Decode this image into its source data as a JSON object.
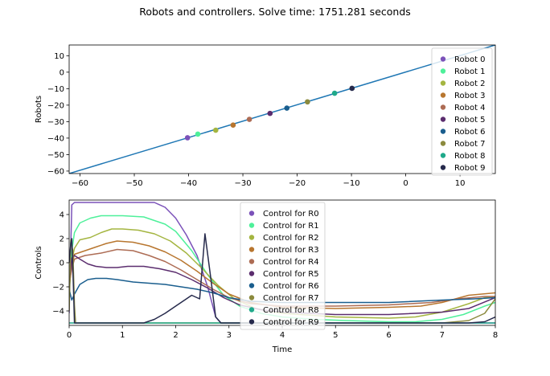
{
  "figure": {
    "suptitle": "Robots and controllers. Solve time: 1751.281 seconds"
  },
  "chart_data": [
    {
      "type": "scatter",
      "title": "",
      "xlabel": "",
      "ylabel": "Robots",
      "xlim": [
        -62,
        16.5
      ],
      "ylim": [
        -61.5,
        16.5
      ],
      "xticks": [
        -60,
        -50,
        -40,
        -30,
        -20,
        -10,
        0,
        10
      ],
      "yticks": [
        10,
        0,
        -10,
        -20,
        -30,
        -40,
        -50,
        -60
      ],
      "grid": false,
      "legend_position": "top-right",
      "line": {
        "x": [
          -62,
          16.5
        ],
        "y": [
          -61.5,
          16.5
        ],
        "color": "#1f77b4"
      },
      "series": [
        {
          "name": "Robot 0",
          "x": -40.2,
          "y": -39.8,
          "color": "#7b52b9"
        },
        {
          "name": "Robot 1",
          "x": -38.3,
          "y": -37.6,
          "color": "#4ef09a"
        },
        {
          "name": "Robot 2",
          "x": -35.0,
          "y": -35.2,
          "color": "#a4b540"
        },
        {
          "name": "Robot 3",
          "x": -31.8,
          "y": -32.1,
          "color": "#b8762f"
        },
        {
          "name": "Robot 4",
          "x": -28.8,
          "y": -28.6,
          "color": "#ad6c54"
        },
        {
          "name": "Robot 5",
          "x": -25.0,
          "y": -25.0,
          "color": "#5b2d6e"
        },
        {
          "name": "Robot 6",
          "x": -21.9,
          "y": -21.8,
          "color": "#1a5e8e"
        },
        {
          "name": "Robot 7",
          "x": -18.1,
          "y": -18.0,
          "color": "#8b8a3e"
        },
        {
          "name": "Robot 8",
          "x": -13.1,
          "y": -12.8,
          "color": "#1fa98a"
        },
        {
          "name": "Robot 9",
          "x": -9.9,
          "y": -9.8,
          "color": "#262a4c"
        }
      ]
    },
    {
      "type": "line",
      "title": "",
      "xlabel": "Time",
      "ylabel": "Controls",
      "xlim": [
        0,
        8
      ],
      "ylim": [
        -5.2,
        5.2
      ],
      "xticks": [
        0,
        1,
        2,
        3,
        4,
        5,
        6,
        7,
        8
      ],
      "yticks": [
        4,
        2,
        0,
        -2,
        -4
      ],
      "grid": false,
      "legend_position": "top-center",
      "series": [
        {
          "name": "Control for R0",
          "color": "#7b52b9",
          "x": [
            0,
            0.05,
            0.1,
            0.5,
            1.0,
            1.6,
            1.8,
            2.0,
            2.2,
            2.4,
            2.6,
            2.75,
            2.85,
            3.0,
            4.0,
            6.0,
            8.0
          ],
          "y": [
            -4.2,
            4.8,
            5.0,
            5.0,
            5.0,
            5.0,
            4.6,
            3.7,
            2.3,
            0.6,
            -2.0,
            -4.5,
            -5.0,
            -5.0,
            -5.0,
            -5.0,
            -5.0
          ]
        },
        {
          "name": "Control for R1",
          "color": "#4ef09a",
          "x": [
            0,
            0.05,
            0.1,
            0.2,
            0.4,
            0.6,
            1.0,
            1.4,
            1.8,
            2.0,
            2.3,
            2.6,
            2.9,
            3.2,
            3.6,
            4.0,
            4.6,
            5.2,
            6.0,
            6.5,
            7.0,
            7.4,
            7.8,
            8.0
          ],
          "y": [
            -2.6,
            1.0,
            2.5,
            3.3,
            3.7,
            3.9,
            3.9,
            3.8,
            3.2,
            2.6,
            1.0,
            -1.0,
            -2.7,
            -3.6,
            -4.2,
            -4.5,
            -4.7,
            -4.8,
            -4.9,
            -4.9,
            -4.7,
            -4.3,
            -3.6,
            -3.3
          ]
        },
        {
          "name": "Control for R2",
          "color": "#a4b540",
          "x": [
            0,
            0.05,
            0.1,
            0.2,
            0.4,
            0.6,
            0.8,
            1.0,
            1.3,
            1.6,
            1.9,
            2.2,
            2.5,
            2.8,
            3.1,
            3.5,
            4.0,
            5.0,
            6.0,
            6.5,
            7.0,
            7.5,
            7.8,
            8.0
          ],
          "y": [
            -2.3,
            0.2,
            1.2,
            1.9,
            2.1,
            2.5,
            2.8,
            2.8,
            2.7,
            2.4,
            1.8,
            0.8,
            -0.5,
            -1.9,
            -3.0,
            -3.8,
            -4.2,
            -4.5,
            -4.6,
            -4.5,
            -4.1,
            -3.4,
            -2.9,
            -2.8
          ]
        },
        {
          "name": "Control for R3",
          "color": "#b8762f",
          "x": [
            0,
            0.05,
            0.1,
            0.3,
            0.5,
            0.7,
            0.9,
            1.2,
            1.5,
            1.8,
            2.1,
            2.4,
            2.7,
            3.0,
            3.4,
            4.0,
            5.0,
            6.0,
            6.6,
            7.0,
            7.5,
            8.0
          ],
          "y": [
            -2.0,
            -0.2,
            0.7,
            1.0,
            1.3,
            1.6,
            1.8,
            1.7,
            1.4,
            0.9,
            0.2,
            -0.7,
            -1.7,
            -2.6,
            -3.3,
            -3.7,
            -3.8,
            -3.7,
            -3.6,
            -3.3,
            -2.7,
            -2.5
          ]
        },
        {
          "name": "Control for R4",
          "color": "#ad6c54",
          "x": [
            0,
            0.05,
            0.1,
            0.3,
            0.6,
            0.9,
            1.2,
            1.5,
            1.8,
            2.1,
            2.4,
            2.7,
            3.0,
            3.4,
            4.0,
            5.0,
            6.0,
            6.8,
            7.3,
            7.8,
            8.0
          ],
          "y": [
            -1.8,
            -0.5,
            0.3,
            0.6,
            0.8,
            1.1,
            1.0,
            0.6,
            0.1,
            -0.6,
            -1.4,
            -2.2,
            -2.9,
            -3.4,
            -3.6,
            -3.6,
            -3.5,
            -3.3,
            -3.0,
            -2.8,
            -2.8
          ]
        },
        {
          "name": "Control for R5",
          "color": "#5b2d6e",
          "x": [
            0,
            0.05,
            0.1,
            0.2,
            0.35,
            0.5,
            0.7,
            0.9,
            1.1,
            1.4,
            1.7,
            2.0,
            2.3,
            2.6,
            2.9,
            3.2,
            3.6,
            4.0,
            5.0,
            6.0,
            7.0,
            7.5,
            8.0
          ],
          "y": [
            -1.7,
            0.4,
            0.6,
            0.3,
            -0.1,
            -0.3,
            -0.4,
            -0.4,
            -0.3,
            -0.3,
            -0.5,
            -0.8,
            -1.4,
            -2.1,
            -2.9,
            -3.5,
            -3.9,
            -4.1,
            -4.3,
            -4.3,
            -4.1,
            -3.8,
            -2.9
          ]
        },
        {
          "name": "Control for R6",
          "color": "#1a5e8e",
          "x": [
            0,
            0.05,
            0.1,
            0.2,
            0.35,
            0.5,
            0.7,
            0.9,
            1.2,
            1.5,
            1.8,
            2.1,
            2.4,
            2.7,
            3.0,
            3.4,
            4.0,
            5.0,
            6.0,
            7.0,
            7.6,
            8.0
          ],
          "y": [
            -2.2,
            -3.1,
            -2.6,
            -1.8,
            -1.4,
            -1.3,
            -1.3,
            -1.4,
            -1.6,
            -1.7,
            -1.8,
            -2.0,
            -2.2,
            -2.5,
            -2.9,
            -3.2,
            -3.3,
            -3.3,
            -3.3,
            -3.1,
            -3.0,
            -2.9
          ]
        },
        {
          "name": "Control for R7",
          "color": "#8b8a3e",
          "x": [
            0,
            0.03,
            0.07,
            0.1,
            0.12,
            2.0,
            4.0,
            6.0,
            7.0,
            7.5,
            7.8,
            8.0
          ],
          "y": [
            -4.0,
            1.9,
            1.0,
            -3.5,
            -5.0,
            -5.0,
            -5.0,
            -5.0,
            -5.0,
            -4.8,
            -4.2,
            -3.0
          ]
        },
        {
          "name": "Control for R8",
          "color": "#1fa98a",
          "x": [
            0,
            0.05,
            0.1,
            2.0,
            4.0,
            6.0,
            8.0
          ],
          "y": [
            -5.0,
            -5.0,
            -5.0,
            -5.0,
            -5.0,
            -5.0,
            -5.0
          ]
        },
        {
          "name": "Control for R9",
          "color": "#262a4c",
          "x": [
            0,
            0.03,
            0.05,
            0.08,
            0.1,
            0.5,
            1.0,
            1.4,
            1.6,
            1.8,
            2.0,
            2.2,
            2.3,
            2.45,
            2.55,
            2.65,
            2.75,
            2.85,
            3.0,
            5.0,
            7.0,
            7.5,
            7.8,
            8.0
          ],
          "y": [
            0.0,
            1.6,
            2.0,
            -2.0,
            -5.0,
            -5.0,
            -5.0,
            -5.0,
            -4.7,
            -4.2,
            -3.6,
            -3.0,
            -2.7,
            -3.0,
            2.4,
            -1.0,
            -4.5,
            -5.0,
            -5.0,
            -5.0,
            -5.0,
            -5.0,
            -4.9,
            -4.5
          ]
        }
      ]
    }
  ]
}
